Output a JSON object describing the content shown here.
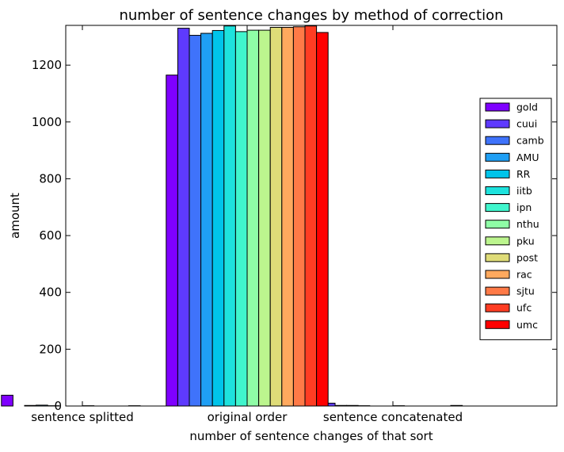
{
  "chart_data": {
    "type": "bar",
    "title": "number of sentence changes by method of correction",
    "xlabel": "number of sentence changes of that sort",
    "ylabel": "amount",
    "categories": [
      "sentence splitted",
      "original order",
      "sentence concatenated"
    ],
    "ylim": [
      0,
      1340
    ],
    "yticks": [
      "0",
      "200",
      "400",
      "600",
      "800",
      "1000",
      "1200"
    ],
    "legend_position": "right",
    "grid": false,
    "series": [
      {
        "name": "gold",
        "color": "#7f00ff",
        "values": [
          38,
          1165,
          33
        ]
      },
      {
        "name": "cuui",
        "color": "#5e3afe",
        "values": [
          0,
          1330,
          10
        ]
      },
      {
        "name": "camb",
        "color": "#3f73fb",
        "values": [
          2,
          1305,
          2
        ]
      },
      {
        "name": "AMU",
        "color": "#1f9ff4",
        "values": [
          3,
          1312,
          2
        ]
      },
      {
        "name": "RR",
        "color": "#00c4ea",
        "values": [
          1,
          1322,
          1
        ]
      },
      {
        "name": "iitb",
        "color": "#1ee2dd",
        "values": [
          0,
          1338,
          0
        ]
      },
      {
        "name": "ipn",
        "color": "#40f6cd",
        "values": [
          0,
          1318,
          0
        ]
      },
      {
        "name": "nthu",
        "color": "#8ffda6",
        "values": [
          1,
          1323,
          1
        ]
      },
      {
        "name": "pku",
        "color": "#bcf58e",
        "values": [
          0,
          1323,
          0
        ]
      },
      {
        "name": "post",
        "color": "#dfdc78",
        "values": [
          0,
          1333,
          0
        ]
      },
      {
        "name": "rac",
        "color": "#ffa95e",
        "values": [
          0,
          1333,
          0
        ]
      },
      {
        "name": "sjtu",
        "color": "#ff7a47",
        "values": [
          1,
          1335,
          0
        ]
      },
      {
        "name": "ufc",
        "color": "#ff3d23",
        "values": [
          0,
          1338,
          2
        ]
      },
      {
        "name": "umc",
        "color": "#ff0000",
        "values": [
          0,
          1315,
          0
        ]
      }
    ]
  }
}
